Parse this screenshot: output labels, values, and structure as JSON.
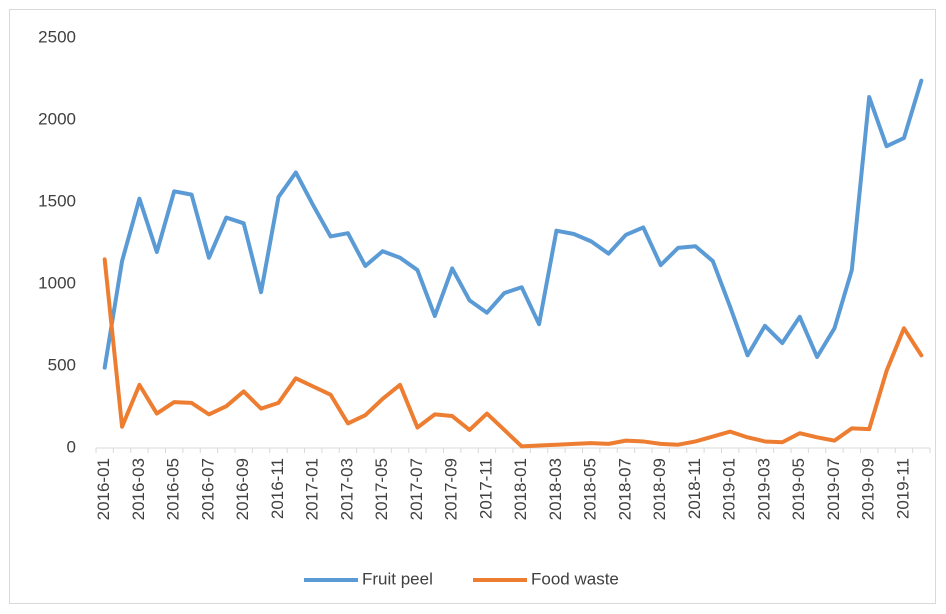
{
  "chart_data": {
    "type": "line",
    "categories": [
      "2016-01",
      null,
      "2016-03",
      null,
      "2016-05",
      null,
      "2016-07",
      null,
      "2016-09",
      null,
      "2016-11",
      null,
      "2017-01",
      null,
      "2017-03",
      null,
      "2017-05",
      null,
      "2017-07",
      null,
      "2017-09",
      null,
      "2017-11",
      null,
      "2018-01",
      null,
      "2018-03",
      null,
      "2018-05",
      null,
      "2018-07",
      null,
      "2018-09",
      null,
      "2018-11",
      null,
      "2019-01",
      null,
      "2019-03",
      null,
      "2019-05",
      null,
      "2019-07",
      null,
      "2019-09",
      null,
      "2019-11",
      null
    ],
    "series": [
      {
        "name": "Fruit peel",
        "color": "#5b9bd5",
        "values": [
          490,
          1140,
          1520,
          1195,
          1565,
          1545,
          1160,
          1405,
          1370,
          950,
          1530,
          1680,
          1480,
          1290,
          1310,
          1110,
          1200,
          1160,
          1085,
          805,
          1095,
          900,
          825,
          945,
          980,
          755,
          1325,
          1305,
          1260,
          1185,
          1300,
          1345,
          1115,
          1220,
          1230,
          1140,
          860,
          565,
          745,
          640,
          800,
          555,
          730,
          1085,
          2140,
          1840,
          1890,
          2240
        ]
      },
      {
        "name": "Food waste",
        "color": "#ed7d31",
        "values": [
          1150,
          130,
          385,
          210,
          280,
          275,
          205,
          255,
          345,
          240,
          275,
          425,
          375,
          325,
          150,
          200,
          300,
          385,
          125,
          205,
          195,
          110,
          210,
          110,
          10,
          15,
          20,
          25,
          30,
          25,
          45,
          40,
          25,
          20,
          40,
          70,
          100,
          65,
          40,
          35,
          90,
          65,
          45,
          120,
          115,
          470,
          730,
          565
        ]
      }
    ],
    "ylim": [
      0,
      2500
    ],
    "yticks": [
      0,
      500,
      1000,
      1500,
      2000,
      2500
    ],
    "legend": "bottom"
  }
}
